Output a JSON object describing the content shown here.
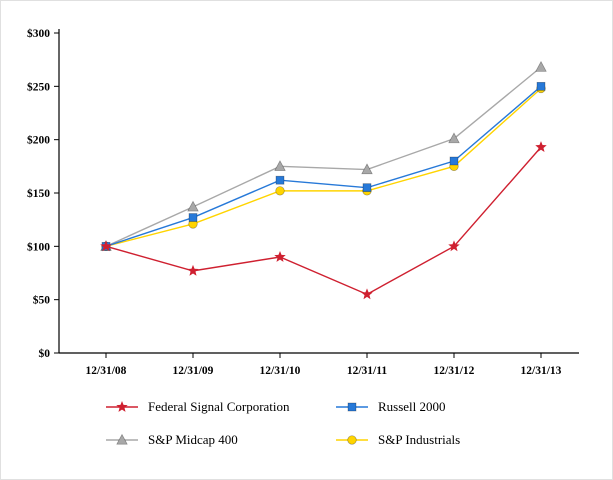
{
  "chart_data": {
    "type": "line",
    "title": "",
    "xlabel": "",
    "ylabel": "",
    "x_categories": [
      "12/31/08",
      "12/31/09",
      "12/31/10",
      "12/31/11",
      "12/31/12",
      "12/31/13"
    ],
    "y_ticks": [
      "$0",
      "$50",
      "$100",
      "$150",
      "$200",
      "$250",
      "$300"
    ],
    "ylim": [
      0,
      300
    ],
    "grid": false,
    "legend_position": "bottom",
    "series": [
      {
        "name": "Federal Signal Corporation",
        "color": "#cf2030",
        "marker": "star",
        "values": [
          100,
          77,
          90,
          55,
          100,
          193
        ]
      },
      {
        "name": "Russell 2000",
        "color": "#2779d8",
        "marker": "square",
        "values": [
          100,
          127,
          162,
          155,
          180,
          250
        ]
      },
      {
        "name": "S&P Midcap 400",
        "color": "#a8a8a8",
        "marker": "triangle",
        "values": [
          100,
          137,
          175,
          172,
          201,
          268
        ]
      },
      {
        "name": "S&P Industrials",
        "color": "#ffd400",
        "marker": "circle",
        "values": [
          100,
          121,
          152,
          152,
          175,
          248
        ]
      }
    ]
  }
}
